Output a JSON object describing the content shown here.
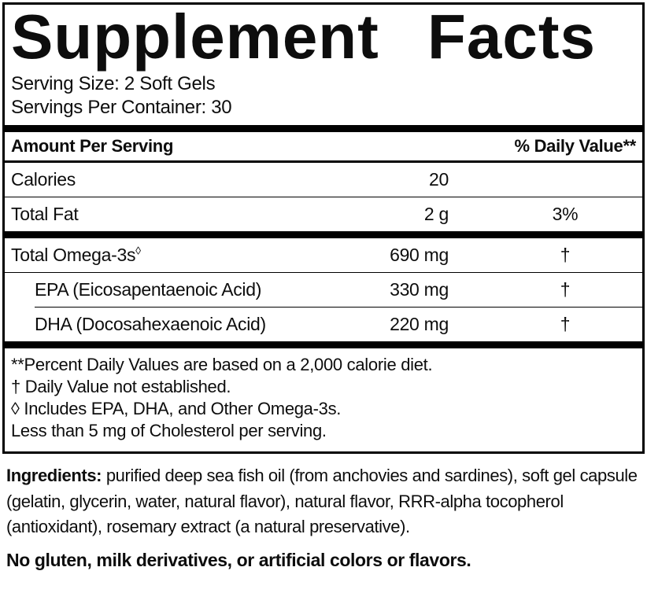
{
  "colors": {
    "background": "#ffffff",
    "ink": "#0d0d0d",
    "rule": "#000000"
  },
  "facts": {
    "title": "Supplement Facts",
    "serving_size": "Serving Size: 2 Soft Gels",
    "servings_per_container": "Servings Per Container: 30",
    "columns": {
      "amount_header": "Amount Per Serving",
      "dv_header": "% Daily Value**"
    },
    "rows_main": [
      {
        "name": "Calories",
        "amount": "20",
        "dv": ""
      },
      {
        "name": "Total Fat",
        "amount": "2 g",
        "dv": "3%"
      }
    ],
    "rows_omega": [
      {
        "name": "Total Omega-3s",
        "sup": "◊",
        "amount": "690 mg",
        "dv": "†"
      },
      {
        "name": "EPA (Eicosapentaenoic Acid)",
        "amount": "330 mg",
        "dv": "†"
      },
      {
        "name": "DHA (Docosahexaenoic Acid)",
        "amount": "220 mg",
        "dv": "†"
      }
    ],
    "footnotes": [
      "**Percent Daily Values are based on a 2,000 calorie diet.",
      "† Daily Value not established.",
      "◊ Includes EPA, DHA, and Other Omega-3s.",
      "Less than 5 mg of Cholesterol per serving."
    ]
  },
  "ingredients": {
    "label": "Ingredients:",
    "text": "purified deep sea fish oil (from anchovies and sardines), soft gel capsule (gelatin, glycerin, water, natural flavor), natural flavor, RRR-alpha tocopherol (antioxidant), rosemary extract (a natural preservative)."
  },
  "allergen_statement": "No gluten, milk derivatives, or artificial colors or flavors."
}
